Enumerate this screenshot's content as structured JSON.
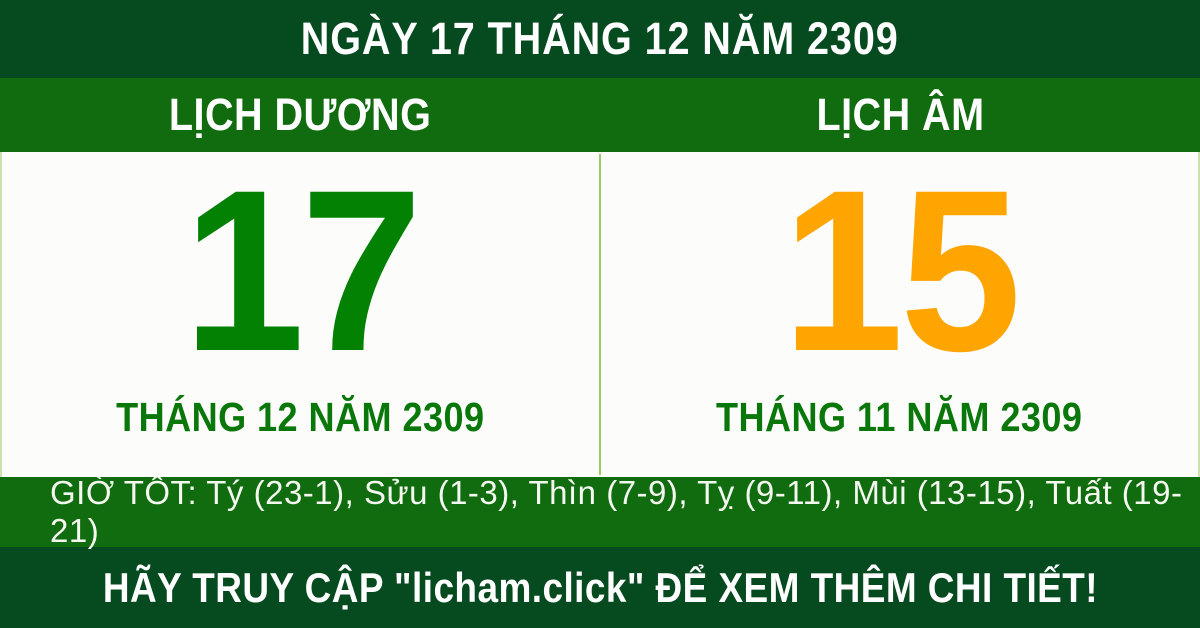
{
  "header": {
    "title": "NGÀY 17 THÁNG 12 NĂM 2309"
  },
  "calendar": {
    "solar": {
      "header": "LỊCH DƯƠNG",
      "day": "17",
      "month_year": "THÁNG 12 NĂM 2309"
    },
    "lunar": {
      "header": "LỊCH ÂM",
      "day": "15",
      "month_year": "THÁNG 11 NĂM 2309"
    }
  },
  "good_hours": {
    "text": "GIỜ TỐT: Tý (23-1), Sửu (1-3), Thìn (7-9), Tỵ (9-11), Mùi (13-15), Tuất (19-21)"
  },
  "footer": {
    "text": "HÃY TRUY CẬP \"licham.click\" ĐỂ XEM THÊM CHI TIẾT!"
  },
  "colors": {
    "dark_green": "#064a20",
    "bright_green": "#106c0e",
    "solar_day_green": "#038103",
    "lunar_day_orange": "#ffa502",
    "month_green": "#0a770a",
    "divider_green": "#9cc96a"
  }
}
